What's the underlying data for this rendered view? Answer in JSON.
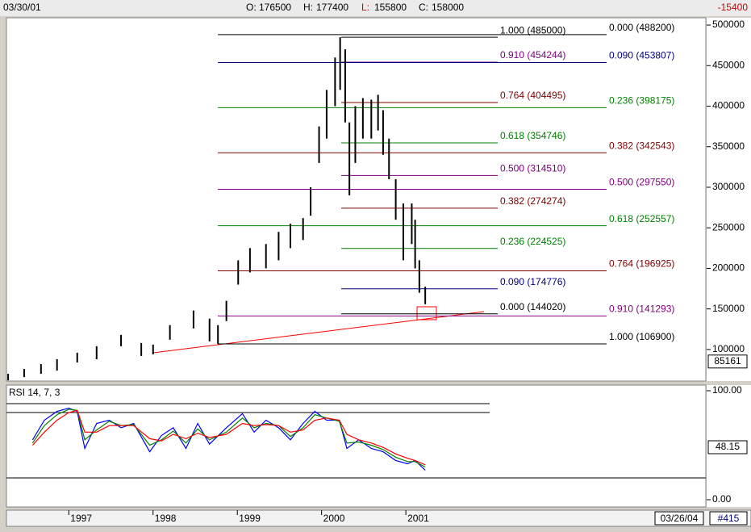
{
  "header": {
    "date": "03/30/01",
    "ohlc": [
      {
        "label": "O:",
        "value": "176500"
      },
      {
        "label": "H:",
        "value": "177400"
      },
      {
        "label": "L:",
        "value": "155800"
      },
      {
        "label": "C:",
        "value": "158000"
      }
    ],
    "change": "-15400"
  },
  "footer": {
    "end_date": "03/26/04",
    "bar_count": "#415"
  },
  "chart_data": [
    {
      "type": "hilo",
      "color": "#000000",
      "x": [
        1996.28,
        1996.47,
        1996.67,
        1996.86,
        1997.1,
        1997.33,
        1997.62,
        1997.86,
        1998.0,
        1998.2,
        1998.48,
        1998.67,
        1998.77,
        1998.87,
        1999.01,
        1999.15,
        1999.34,
        1999.49,
        1999.63,
        1999.78,
        1999.87,
        1999.97,
        2000.06,
        2000.16,
        2000.22,
        2000.28,
        2000.33,
        2000.4,
        2000.49,
        2000.59,
        2000.67,
        2000.73,
        2000.8,
        2000.88,
        2000.97,
        2001.07,
        2001.11,
        2001.16,
        2001.23
      ],
      "high": [
        70000,
        76000,
        82000,
        88000,
        96000,
        104000,
        118000,
        108000,
        106000,
        130000,
        148000,
        138000,
        130000,
        160000,
        210000,
        225000,
        230000,
        245000,
        255000,
        262000,
        300000,
        375000,
        420000,
        460000,
        485000,
        470000,
        380000,
        400000,
        410000,
        408000,
        414000,
        395000,
        360000,
        310000,
        280000,
        280000,
        260000,
        210000,
        177400
      ],
      "low": [
        62000,
        66000,
        70000,
        74000,
        84000,
        88000,
        104000,
        92000,
        94000,
        112000,
        126000,
        110000,
        106900,
        135000,
        180000,
        195000,
        200000,
        210000,
        225000,
        235000,
        265000,
        330000,
        360000,
        400000,
        420000,
        380000,
        290000,
        330000,
        360000,
        360000,
        370000,
        340000,
        310000,
        260000,
        210000,
        230000,
        200000,
        170000,
        155800
      ],
      "xlim": [
        1996.26,
        2004.56
      ],
      "xticks": [
        1997,
        1998,
        1999,
        2000,
        2001
      ],
      "ylim": [
        61100,
        509000
      ],
      "yticks": [
        100000,
        150000,
        200000,
        250000,
        300000,
        350000,
        400000,
        450000,
        500000
      ],
      "marker": 85161,
      "fib_levels": [
        [
          {
            "label": "1.000 (485000)",
            "value": 485000,
            "color": "#000000"
          },
          {
            "label": "0.910 (454244)",
            "value": 454244,
            "color": "#800080"
          },
          {
            "label": "0.764 (404495)",
            "value": 404495,
            "color": "#800000"
          },
          {
            "label": "0.618 (354746)",
            "value": 354746,
            "color": "#008000"
          },
          {
            "label": "0.500 (314510)",
            "value": 314510,
            "color": "#800080"
          },
          {
            "label": "0.382 (274274)",
            "value": 274274,
            "color": "#800000"
          },
          {
            "label": "0.236 (224525)",
            "value": 224525,
            "color": "#008000"
          },
          {
            "label": "0.090 (174776)",
            "value": 174776,
            "color": "#000080"
          },
          {
            "label": "0.000 (144020)",
            "value": 144020,
            "color": "#000000"
          }
        ],
        [
          {
            "label": "0.000 (488200)",
            "value": 488200,
            "color": "#000000"
          },
          {
            "label": "0.090 (453807)",
            "value": 453807,
            "color": "#000080"
          },
          {
            "label": "0.236 (398175)",
            "value": 398175,
            "color": "#008000"
          },
          {
            "label": "0.382 (342543)",
            "value": 342543,
            "color": "#800000"
          },
          {
            "label": "0.500 (297550)",
            "value": 297550,
            "color": "#800080"
          },
          {
            "label": "0.618 (252557)",
            "value": 252557,
            "color": "#008000"
          },
          {
            "label": "0.764 (196925)",
            "value": 196925,
            "color": "#800000"
          },
          {
            "label": "0.910 (141293)",
            "value": 141293,
            "color": "#800080"
          },
          {
            "label": "1.000 (106900)",
            "value": 106900,
            "color": "#000000"
          }
        ]
      ]
    },
    {
      "type": "line",
      "title": "RSI 14, 7, 3",
      "x": [
        1996.57,
        1996.71,
        1996.86,
        1997.0,
        1997.1,
        1997.19,
        1997.33,
        1997.48,
        1997.62,
        1997.77,
        1997.96,
        1998.1,
        1998.24,
        1998.39,
        1998.53,
        1998.67,
        1998.87,
        1999.06,
        1999.2,
        1999.34,
        1999.49,
        1999.63,
        1999.78,
        1999.92,
        2000.06,
        2000.21,
        2000.3,
        2000.44,
        2000.59,
        2000.73,
        2000.88,
        2001.02,
        2001.11,
        2001.23
      ],
      "series": [
        {
          "color": "#0000ff",
          "values": [
            55,
            73,
            81,
            84,
            81,
            47,
            70,
            73,
            66,
            70,
            44,
            59,
            66,
            47,
            70,
            51,
            66,
            79,
            62,
            73,
            66,
            55,
            70,
            81,
            73,
            73,
            47,
            55,
            47,
            44,
            36,
            33,
            36,
            27
          ]
        },
        {
          "color": "#008000",
          "values": [
            52,
            68,
            78,
            83,
            82,
            55,
            64,
            72,
            68,
            69,
            50,
            55,
            63,
            52,
            65,
            55,
            62,
            75,
            66,
            70,
            68,
            58,
            66,
            78,
            75,
            72,
            52,
            53,
            50,
            46,
            39,
            35,
            35,
            30
          ]
        },
        {
          "color": "#ff0000",
          "values": [
            50,
            62,
            73,
            80,
            82,
            62,
            62,
            68,
            68,
            68,
            56,
            54,
            60,
            56,
            61,
            57,
            60,
            70,
            68,
            69,
            68,
            62,
            64,
            73,
            75,
            73,
            60,
            55,
            52,
            48,
            42,
            38,
            36,
            32
          ]
        }
      ],
      "xlim": [
        1996.26,
        2004.56
      ],
      "ylim": [
        0,
        100
      ],
      "yticks": [
        {
          "value": 0,
          "label": "0.00"
        },
        {
          "value": 100,
          "label": "100.00"
        }
      ],
      "levels": [
        80,
        20
      ],
      "marker": 48.15
    }
  ]
}
